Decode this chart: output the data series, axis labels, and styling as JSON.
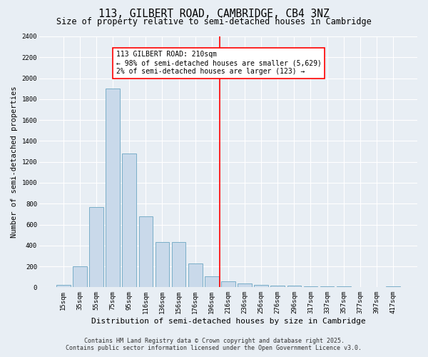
{
  "title_line1": "113, GILBERT ROAD, CAMBRIDGE, CB4 3NZ",
  "title_line2": "Size of property relative to semi-detached houses in Cambridge",
  "xlabel": "Distribution of semi-detached houses by size in Cambridge",
  "ylabel": "Number of semi-detached properties",
  "categories": [
    "15sqm",
    "35sqm",
    "55sqm",
    "75sqm",
    "95sqm",
    "116sqm",
    "136sqm",
    "156sqm",
    "176sqm",
    "196sqm",
    "216sqm",
    "236sqm",
    "256sqm",
    "276sqm",
    "296sqm",
    "317sqm",
    "337sqm",
    "357sqm",
    "377sqm",
    "397sqm",
    "417sqm"
  ],
  "bar_heights": [
    20,
    200,
    770,
    1900,
    1280,
    680,
    430,
    430,
    230,
    105,
    60,
    38,
    25,
    18,
    14,
    10,
    10,
    8,
    5,
    3,
    10
  ],
  "bar_color": "#c9d9ea",
  "bar_edge_color": "#7aaec8",
  "annotation_text": "113 GILBERT ROAD: 210sqm\n← 98% of semi-detached houses are smaller (5,629)\n2% of semi-detached houses are larger (123) →",
  "ylim": [
    0,
    2400
  ],
  "yticks": [
    0,
    200,
    400,
    600,
    800,
    1000,
    1200,
    1400,
    1600,
    1800,
    2000,
    2200,
    2400
  ],
  "background_color": "#e8eef4",
  "plot_bg_color": "#e8eef4",
  "footer_line1": "Contains HM Land Registry data © Crown copyright and database right 2025.",
  "footer_line2": "Contains public sector information licensed under the Open Government Licence v3.0.",
  "title_fontsize": 10.5,
  "subtitle_fontsize": 8.5,
  "xlabel_fontsize": 8,
  "ylabel_fontsize": 7.5,
  "tick_fontsize": 6.5,
  "annotation_fontsize": 7,
  "footer_fontsize": 6
}
